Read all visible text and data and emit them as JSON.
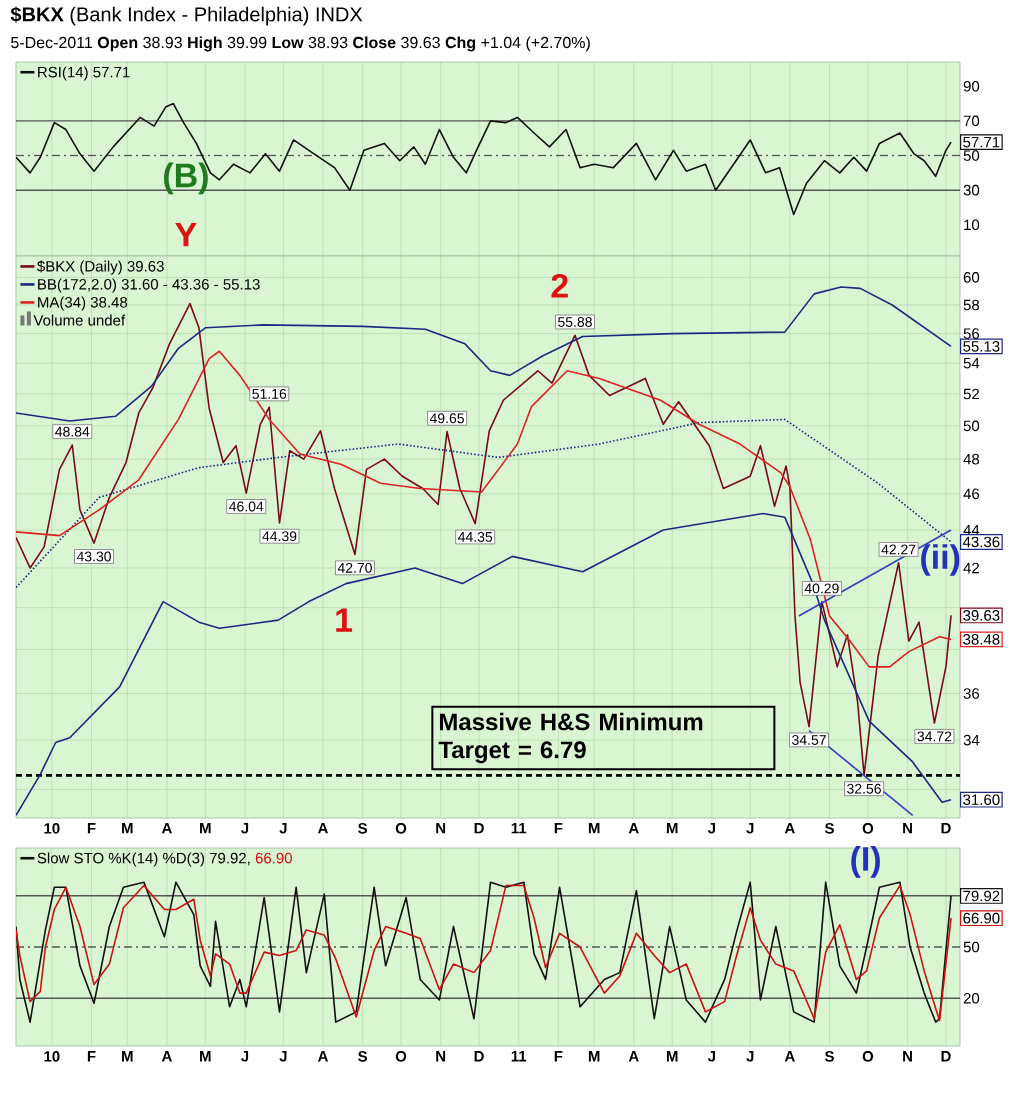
{
  "chart_data": [
    {
      "type": "line",
      "title": "**$BKX** (Bank Index - Philadelphia) INDX",
      "subtitle": "5-Dec-2011          **Open** 38.93  **High** 39.99  **Low** 38.93  **Close** 39.63  **Chg** +1.04 (+2.70%)",
      "xlim": [
        "2009-12-04",
        "2011-12-12"
      ],
      "ylim": [
        -8,
        104
      ],
      "yticks": [
        10,
        30,
        50,
        70,
        90
      ],
      "xticks": [
        {
          "value": "2010-01-01",
          "label": null
        },
        {
          "value": "2010-02-01",
          "label": null
        },
        {
          "value": "2010-03-01",
          "label": null
        },
        {
          "value": "2010-04-01",
          "label": null
        },
        {
          "value": "2010-05-01",
          "label": null
        },
        {
          "value": "2010-06-01",
          "label": null
        },
        {
          "value": "2010-07-01",
          "label": null
        },
        {
          "value": "2010-08-01",
          "label": null
        },
        {
          "value": "2010-09-01",
          "label": null
        },
        {
          "value": "2010-10-01",
          "label": null
        },
        {
          "value": "2010-11-01",
          "label": null
        },
        {
          "value": "2010-12-01",
          "label": null
        },
        {
          "value": "2011-01-01",
          "label": null
        },
        {
          "value": "2011-02-01",
          "label": null
        },
        {
          "value": "2011-03-01",
          "label": null
        },
        {
          "value": "2011-04-01",
          "label": null
        },
        {
          "value": "2011-05-01",
          "label": null
        },
        {
          "value": "2011-06-01",
          "label": null
        },
        {
          "value": "2011-07-01",
          "label": null
        },
        {
          "value": "2011-08-01",
          "label": null
        },
        {
          "value": "2011-09-01",
          "label": null
        },
        {
          "value": "2011-10-01",
          "label": null
        },
        {
          "value": "2011-11-01",
          "label": null
        },
        {
          "value": "2011-12-01",
          "label": null
        }
      ],
      "tick_labels": "y",
      "grid": "x",
      "legend": "top left",
      "ref_lines": [
        {
          "axis": "y",
          "value": 70,
          "color": "#555555",
          "line_style": "solid"
        },
        {
          "axis": "y",
          "value": 30,
          "color": "#555555",
          "line_style": "solid"
        },
        {
          "axis": "y",
          "value": 50,
          "color": "#555555",
          "line_style": "dashed"
        }
      ],
      "series": [
        {
          "name": "RSI(14) 57.71",
          "color": "#111111",
          "x": [
            "2009-12-04",
            "2009-12-15",
            "2009-12-23",
            "2010-01-03",
            "2010-01-12",
            "2010-01-23",
            "2010-02-03",
            "2010-02-18",
            "2010-03-11",
            "2010-03-22",
            "2010-03-31",
            "2010-04-06",
            "2010-04-14",
            "2010-04-24",
            "2010-05-05",
            "2010-05-12",
            "2010-05-23",
            "2010-06-05",
            "2010-06-17",
            "2010-06-28",
            "2010-07-09",
            "2010-07-25",
            "2010-08-10",
            "2010-08-22",
            "2010-09-02",
            "2010-09-18",
            "2010-09-30",
            "2010-10-11",
            "2010-10-20",
            "2010-10-31",
            "2010-11-11",
            "2010-11-21",
            "2010-11-29",
            "2010-12-10",
            "2010-12-22",
            "2010-12-31",
            "2011-01-13",
            "2011-01-25",
            "2011-02-07",
            "2011-02-18",
            "2011-03-01",
            "2011-03-16",
            "2011-04-03",
            "2011-04-18",
            "2011-05-02",
            "2011-05-12",
            "2011-05-27",
            "2011-06-04",
            "2011-06-18",
            "2011-07-01",
            "2011-07-13",
            "2011-07-24",
            "2011-08-04",
            "2011-08-14",
            "2011-08-28",
            "2011-09-09",
            "2011-09-20",
            "2011-09-30",
            "2011-10-10",
            "2011-10-26",
            "2011-11-06",
            "2011-11-14",
            "2011-11-23",
            "2011-12-01",
            "2011-12-05"
          ],
          "values": [
            49,
            40,
            49,
            69,
            65,
            51,
            41,
            55,
            72,
            67,
            78,
            80,
            69,
            57,
            40,
            36,
            45,
            40,
            51,
            41,
            59,
            51,
            43,
            30,
            53,
            57,
            47,
            55,
            45,
            65,
            49,
            40,
            53,
            70,
            69,
            72,
            63,
            55,
            65,
            43,
            45,
            43,
            57,
            36,
            53,
            41,
            45,
            30,
            45,
            59,
            40,
            43,
            16,
            34,
            47,
            40,
            49,
            41,
            57,
            63,
            51,
            47,
            38,
            53,
            57.71
          ]
        }
      ],
      "annotations": [
        "(B)",
        "Y",
        {
          "text": "57.71",
          "y": 57.71
        }
      ]
    },
    {
      "type": "line",
      "xlim": [
        "2009-12-04",
        "2011-12-12"
      ],
      "ylim": [
        30.9,
        61.6
      ],
      "log": true,
      "yticks": [
        {
          "value": 32,
          "label": null
        },
        34,
        36,
        {
          "value": 38,
          "label": null
        },
        {
          "value": 40,
          "label": null
        },
        42,
        44,
        46,
        48,
        50,
        52,
        54,
        56,
        58,
        60
      ],
      "xticks": [
        {
          "value": "2010-01-01",
          "label": "10"
        },
        {
          "value": "2010-02-01",
          "label": "F"
        },
        {
          "value": "2010-03-01",
          "label": "M"
        },
        {
          "value": "2010-04-01",
          "label": "A"
        },
        {
          "value": "2010-05-01",
          "label": "M"
        },
        {
          "value": "2010-06-01",
          "label": "J"
        },
        {
          "value": "2010-07-01",
          "label": "J"
        },
        {
          "value": "2010-08-01",
          "label": "A"
        },
        {
          "value": "2010-09-01",
          "label": "S"
        },
        {
          "value": "2010-10-01",
          "label": "O"
        },
        {
          "value": "2010-11-01",
          "label": "N"
        },
        {
          "value": "2010-12-01",
          "label": "D"
        },
        {
          "value": "2011-01-01",
          "label": "11"
        },
        {
          "value": "2011-02-01",
          "label": "F"
        },
        {
          "value": "2011-03-01",
          "label": "M"
        },
        {
          "value": "2011-04-01",
          "label": "A"
        },
        {
          "value": "2011-05-01",
          "label": "M"
        },
        {
          "value": "2011-06-01",
          "label": "J"
        },
        {
          "value": "2011-07-01",
          "label": "J"
        },
        {
          "value": "2011-08-01",
          "label": "A"
        },
        {
          "value": "2011-09-01",
          "label": "S"
        },
        {
          "value": "2011-10-01",
          "label": "O"
        },
        {
          "value": "2011-11-01",
          "label": "N"
        },
        {
          "value": "2011-12-01",
          "label": "D"
        }
      ],
      "grid": true,
      "legend": "top left",
      "ref_lines": [
        {
          "axis": "y",
          "value": 32.56,
          "color": "#000000",
          "line_style": "dashed"
        }
      ],
      "series": [
        {
          "name": "$BKX (Daily) 39.63",
          "color": "#7a0a1a",
          "x": [
            "2009-12-04",
            "2009-12-15",
            "2009-12-26",
            "2010-01-07",
            "2010-01-17",
            "2010-01-23",
            "2010-02-03",
            "2010-02-15",
            "2010-02-28",
            "2010-03-10",
            "2010-03-21",
            "2010-04-03",
            "2010-04-19",
            "2010-04-26",
            "2010-05-04",
            "2010-05-15",
            "2010-05-25",
            "2010-06-02",
            "2010-06-13",
            "2010-06-20",
            "2010-06-28",
            "2010-07-06",
            "2010-07-17",
            "2010-07-30",
            "2010-08-10",
            "2010-08-26",
            "2010-09-04",
            "2010-09-18",
            "2010-10-02",
            "2010-10-18",
            "2010-10-30",
            "2010-11-06",
            "2010-11-16",
            "2010-11-28",
            "2010-12-09",
            "2010-12-20",
            "2011-01-16",
            "2011-01-27",
            "2011-02-14",
            "2011-02-25",
            "2011-03-13",
            "2011-04-10",
            "2011-04-24",
            "2011-05-06",
            "2011-05-30",
            "2011-06-10",
            "2011-07-01",
            "2011-07-09",
            "2011-07-20",
            "2011-07-29",
            "2011-08-01",
            "2011-08-05",
            "2011-08-09",
            "2011-08-16",
            "2011-08-26",
            "2011-09-07",
            "2011-09-15",
            "2011-09-23",
            "2011-09-28",
            "2011-10-09",
            "2011-10-25",
            "2011-11-02",
            "2011-11-10",
            "2011-11-22",
            "2011-12-01",
            "2011-12-05"
          ],
          "values": [
            43.6,
            42.0,
            43.1,
            47.4,
            48.84,
            45.1,
            43.3,
            45.8,
            47.8,
            50.8,
            52.4,
            55.3,
            58.1,
            56.4,
            51.1,
            47.8,
            48.8,
            46.04,
            50.1,
            51.16,
            44.39,
            48.5,
            48.0,
            49.7,
            46.3,
            42.7,
            47.4,
            48.0,
            47.0,
            46.3,
            45.4,
            49.65,
            46.3,
            44.35,
            49.7,
            51.6,
            53.5,
            52.7,
            55.88,
            53.2,
            51.9,
            53.0,
            50.1,
            51.5,
            48.8,
            46.3,
            47.0,
            48.8,
            45.3,
            47.6,
            46.4,
            39.6,
            36.5,
            34.57,
            40.29,
            37.2,
            38.7,
            35.6,
            32.56,
            37.7,
            42.27,
            38.4,
            39.3,
            34.72,
            37.2,
            39.63
          ]
        },
        {
          "name": "BB(172,2.0) 31.60 - 43.36 - 55.13",
          "color": "#1a2a80",
          "x": [
            "2009-12-04",
            "2010-01-15",
            "2010-02-20",
            "2010-03-20",
            "2010-04-10",
            "2010-05-01",
            "2010-06-15",
            "2010-09-01",
            "2010-10-20",
            "2010-11-20",
            "2010-12-10",
            "2010-12-25",
            "2011-01-20",
            "2011-02-20",
            "2011-05-01",
            "2011-07-28",
            "2011-08-20",
            "2011-09-10",
            "2011-09-25",
            "2011-10-20",
            "2011-12-05"
          ],
          "values": [
            50.8,
            50.3,
            50.6,
            52.5,
            55.0,
            56.4,
            56.6,
            56.5,
            56.3,
            55.3,
            53.5,
            53.2,
            54.5,
            55.8,
            56.0,
            56.1,
            58.8,
            59.3,
            59.2,
            58.0,
            55.13
          ]
        },
        {
          "color": "#1a2a80",
          "line_style": "dotted",
          "x": [
            "2009-12-04",
            "2010-02-07",
            "2010-04-26",
            "2010-06-27",
            "2010-09-29",
            "2010-12-16",
            "2011-03-05",
            "2011-05-22",
            "2011-07-28",
            "2011-10-09",
            "2011-12-05"
          ],
          "values": [
            41.0,
            45.8,
            47.5,
            48.1,
            48.9,
            48.1,
            48.9,
            50.2,
            50.4,
            46.6,
            43.36
          ]
        },
        {
          "color": "#1a2a80",
          "x": [
            "2009-12-04",
            "2009-12-23",
            "2010-01-04",
            "2010-01-15",
            "2010-02-23",
            "2010-03-29",
            "2010-04-26",
            "2010-05-12",
            "2010-06-27",
            "2010-07-21",
            "2010-08-19",
            "2010-10-12",
            "2010-11-18",
            "2010-12-27",
            "2011-02-20",
            "2011-04-24",
            "2011-07-11",
            "2011-07-28",
            "2011-08-19",
            "2011-08-28",
            "2011-10-02",
            "2011-11-05",
            "2011-11-28",
            "2011-12-05"
          ],
          "values": [
            31.0,
            32.6,
            33.9,
            34.1,
            36.3,
            40.3,
            39.3,
            39.0,
            39.4,
            40.3,
            41.2,
            42.0,
            41.2,
            42.6,
            41.8,
            44.0,
            44.9,
            44.7,
            41.2,
            39.4,
            34.8,
            33.1,
            31.5,
            31.6
          ]
        },
        {
          "name": "MA(34) 38.48",
          "color": "#dd2222",
          "x": [
            "2009-12-04",
            "2010-01-07",
            "2010-02-07",
            "2010-03-10",
            "2010-04-10",
            "2010-05-04",
            "2010-05-12",
            "2010-05-28",
            "2010-06-20",
            "2010-07-14",
            "2010-08-15",
            "2010-09-15",
            "2010-10-16",
            "2010-12-03",
            "2010-12-31",
            "2011-01-11",
            "2011-02-08",
            "2011-03-05",
            "2011-04-22",
            "2011-05-22",
            "2011-06-23",
            "2011-07-25",
            "2011-08-01",
            "2011-08-17",
            "2011-09-01",
            "2011-09-17",
            "2011-10-02",
            "2011-10-18",
            "2011-11-02",
            "2011-11-26",
            "2011-12-05"
          ],
          "values": [
            43.9,
            43.7,
            45.1,
            46.8,
            50.4,
            54.3,
            54.8,
            53.2,
            50.4,
            48.3,
            47.7,
            46.6,
            46.3,
            46.1,
            48.9,
            51.2,
            53.5,
            53.0,
            51.6,
            50.1,
            48.9,
            47.2,
            46.4,
            43.5,
            39.6,
            38.4,
            37.2,
            37.2,
            37.9,
            38.6,
            38.48
          ]
        },
        {
          "color": "#3040c0",
          "x": [
            "2011-08-08",
            "2011-12-05"
          ],
          "values": [
            39.6,
            44.0
          ]
        },
        {
          "color": "#3040c0",
          "x": [
            "2011-08-16",
            "2011-11-05"
          ],
          "values": [
            34.4,
            31.0
          ]
        }
      ],
      "annotations": [
        "Volume undef",
        "Massive H&S Minimum Target = 6.79",
        {
          "text": "48.84",
          "x": "2010-01-17",
          "y": 48.84
        },
        {
          "text": "43.30",
          "x": "2010-02-03",
          "y": 43.3
        },
        {
          "text": "46.04",
          "x": "2010-06-02",
          "y": 46.04
        },
        {
          "text": "51.16",
          "x": "2010-06-20",
          "y": 51.16
        },
        {
          "text": "44.39",
          "x": "2010-06-28",
          "y": 44.39
        },
        {
          "text": "42.70",
          "x": "2010-08-26",
          "y": 42.7
        },
        {
          "text": "49.65",
          "x": "2010-11-06",
          "y": 49.65
        },
        {
          "text": "44.35",
          "x": "2010-11-28",
          "y": 44.35
        },
        {
          "text": "55.88",
          "x": "2011-02-14",
          "y": 55.88
        },
        {
          "text": "34.57",
          "x": "2011-08-16",
          "y": 34.57
        },
        {
          "text": "40.29",
          "x": "2011-08-26",
          "y": 40.29
        },
        {
          "text": "32.56",
          "x": "2011-09-28",
          "y": 32.56
        },
        {
          "text": "42.27",
          "x": "2011-10-25",
          "y": 42.27
        },
        {
          "text": "34.72",
          "x": "2011-11-22",
          "y": 34.72
        },
        "2",
        "1",
        "(ii)",
        {
          "text": "55.13",
          "y": 55.13
        },
        {
          "text": "43.36",
          "y": 43.36
        },
        {
          "text": "39.63",
          "y": 39.63
        },
        {
          "text": "38.48",
          "y": 38.48
        },
        {
          "text": "31.60",
          "y": 31.6
        }
      ]
    },
    {
      "type": "line",
      "xlim": [
        "2009-12-04",
        "2011-12-12"
      ],
      "ylim": [
        -8,
        108
      ],
      "yticks": [
        20,
        50,
        {
          "value": 80,
          "label": null
        }
      ],
      "xticks": [
        {
          "value": "2010-01-01",
          "label": "10"
        },
        {
          "value": "2010-02-01",
          "label": "F"
        },
        {
          "value": "2010-03-01",
          "label": "M"
        },
        {
          "value": "2010-04-01",
          "label": "A"
        },
        {
          "value": "2010-05-01",
          "label": "M"
        },
        {
          "value": "2010-06-01",
          "label": "J"
        },
        {
          "value": "2010-07-01",
          "label": "J"
        },
        {
          "value": "2010-08-01",
          "label": "A"
        },
        {
          "value": "2010-09-01",
          "label": "S"
        },
        {
          "value": "2010-10-01",
          "label": "O"
        },
        {
          "value": "2010-11-01",
          "label": "N"
        },
        {
          "value": "2010-12-01",
          "label": "D"
        },
        {
          "value": "2011-01-01",
          "label": "11"
        },
        {
          "value": "2011-02-01",
          "label": "F"
        },
        {
          "value": "2011-03-01",
          "label": "M"
        },
        {
          "value": "2011-04-01",
          "label": "A"
        },
        {
          "value": "2011-05-01",
          "label": "M"
        },
        {
          "value": "2011-06-01",
          "label": "J"
        },
        {
          "value": "2011-07-01",
          "label": "J"
        },
        {
          "value": "2011-08-01",
          "label": "A"
        },
        {
          "value": "2011-09-01",
          "label": "S"
        },
        {
          "value": "2011-10-01",
          "label": "O"
        },
        {
          "value": "2011-11-01",
          "label": "N"
        },
        {
          "value": "2011-12-01",
          "label": "D"
        }
      ],
      "grid": "x",
      "legend": "top left",
      "ref_lines": [
        {
          "axis": "y",
          "value": 80,
          "color": "#555555",
          "line_style": "solid"
        },
        {
          "axis": "y",
          "value": 20,
          "color": "#555555",
          "line_style": "solid"
        },
        {
          "axis": "y",
          "value": 50,
          "color": "#555555",
          "line_style": "dashed"
        }
      ],
      "series": [
        {
          "name": "Slow STO %K(14) %D(3) 79.92,",
          "color": "#111111",
          "x": [
            "2009-12-04",
            "2009-12-07",
            "2009-12-15",
            "2009-12-23",
            "2009-12-27",
            "2010-01-03",
            "2010-01-12",
            "2010-01-23",
            "2010-02-03",
            "2010-02-15",
            "2010-02-26",
            "2010-03-14",
            "2010-03-30",
            "2010-04-08",
            "2010-04-22",
            "2010-04-27",
            "2010-05-05",
            "2010-05-09",
            "2010-05-20",
            "2010-05-28",
            "2010-06-02",
            "2010-06-16",
            "2010-06-28",
            "2010-07-11",
            "2010-07-19",
            "2010-08-02",
            "2010-08-11",
            "2010-08-27",
            "2010-09-10",
            "2010-09-19",
            "2010-10-05",
            "2010-10-16",
            "2010-10-31",
            "2010-11-11",
            "2010-11-27",
            "2010-12-10",
            "2010-12-22",
            "2011-01-05",
            "2011-01-13",
            "2011-01-22",
            "2011-02-02",
            "2011-02-18",
            "2011-03-09",
            "2011-03-21",
            "2011-04-03",
            "2011-04-17",
            "2011-04-29",
            "2011-05-12",
            "2011-05-27",
            "2011-06-11",
            "2011-06-20",
            "2011-07-01",
            "2011-07-09",
            "2011-07-21",
            "2011-08-04",
            "2011-08-20",
            "2011-08-29",
            "2011-09-09",
            "2011-09-22",
            "2011-09-30",
            "2011-10-10",
            "2011-10-26",
            "2011-11-03",
            "2011-11-14",
            "2011-11-23",
            "2011-11-26",
            "2011-12-05"
          ],
          "values": [
            62,
            31,
            6,
            42,
            60,
            85,
            85,
            39,
            17,
            62,
            85,
            88,
            56,
            88,
            69,
            39,
            27,
            65,
            15,
            31,
            15,
            79,
            12,
            85,
            35,
            81,
            6,
            12,
            85,
            39,
            79,
            31,
            19,
            62,
            8,
            88,
            85,
            88,
            46,
            31,
            85,
            15,
            31,
            35,
            83,
            8,
            62,
            19,
            6,
            31,
            58,
            88,
            19,
            62,
            12,
            6,
            88,
            39,
            23,
            50,
            85,
            88,
            50,
            23,
            6,
            8,
            79.92
          ]
        },
        {
          "name": "66.90",
          "color": "#cc1111",
          "x": [
            "2009-12-04",
            "2009-12-07",
            "2009-12-15",
            "2009-12-23",
            "2009-12-27",
            "2010-01-03",
            "2010-01-12",
            "2010-01-23",
            "2010-02-03",
            "2010-02-15",
            "2010-02-26",
            "2010-03-14",
            "2010-03-30",
            "2010-04-08",
            "2010-04-22",
            "2010-04-27",
            "2010-05-05",
            "2010-05-09",
            "2010-05-20",
            "2010-05-28",
            "2010-06-02",
            "2010-06-16",
            "2010-06-28",
            "2010-07-11",
            "2010-07-19",
            "2010-08-02",
            "2010-08-11",
            "2010-08-27",
            "2010-09-10",
            "2010-09-19",
            "2010-10-05",
            "2010-10-16",
            "2010-10-31",
            "2010-11-11",
            "2010-11-27",
            "2010-12-10",
            "2010-12-22",
            "2011-01-05",
            "2011-01-13",
            "2011-01-22",
            "2011-02-02",
            "2011-02-18",
            "2011-03-09",
            "2011-03-21",
            "2011-04-03",
            "2011-04-17",
            "2011-04-29",
            "2011-05-12",
            "2011-05-27",
            "2011-06-11",
            "2011-06-20",
            "2011-07-01",
            "2011-07-09",
            "2011-07-21",
            "2011-08-04",
            "2011-08-20",
            "2011-08-29",
            "2011-09-09",
            "2011-09-22",
            "2011-09-30",
            "2011-10-10",
            "2011-10-26",
            "2011-11-03",
            "2011-11-14",
            "2011-11-23",
            "2011-11-26",
            "2011-12-05"
          ],
          "values": [
            60,
            45,
            18,
            24,
            50,
            72,
            85,
            62,
            28,
            40,
            73,
            86,
            72,
            72,
            78,
            54,
            33,
            46,
            40,
            23,
            23,
            47,
            45,
            48,
            60,
            57,
            43,
            9,
            48,
            62,
            58,
            55,
            25,
            40,
            35,
            48,
            86,
            86,
            67,
            38,
            58,
            50,
            23,
            33,
            58,
            45,
            35,
            40,
            12,
            18,
            44,
            73,
            54,
            40,
            36,
            8,
            47,
            63,
            31,
            36,
            67,
            86,
            69,
            36,
            14,
            7,
            66.9
          ]
        }
      ],
      "annotations": [
        "(I)",
        {
          "text": "79.92",
          "y": 79.92
        },
        {
          "text": "66.90",
          "y": 66.9
        }
      ]
    }
  ]
}
